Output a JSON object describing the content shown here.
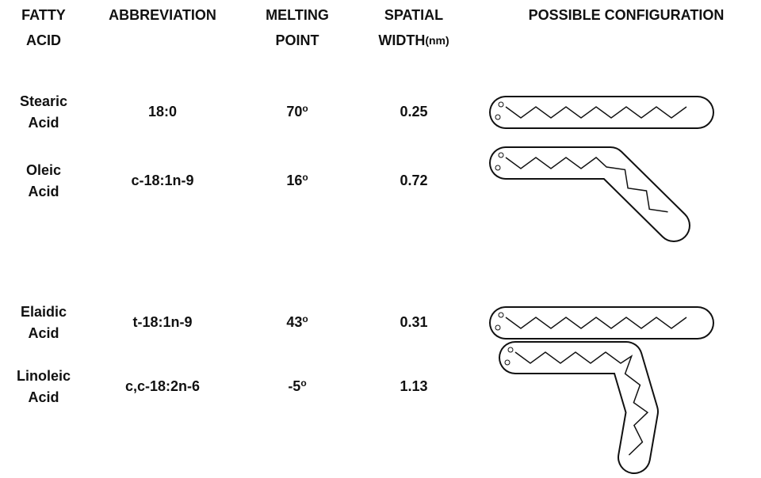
{
  "table": {
    "header": [
      [
        "FATTY",
        "ACID"
      ],
      [
        "ABBREVIATION"
      ],
      [
        "MELTING",
        "POINT"
      ],
      [
        "SPATIAL",
        "WIDTH",
        "(nm)"
      ],
      [
        "POSSIBLE CONFIGURATION"
      ]
    ],
    "rows": [
      {
        "name": [
          "Stearic",
          "Acid"
        ],
        "abbreviation": "18:0",
        "melting_point": "70",
        "degree": "o",
        "spatial_width": "0.25"
      },
      {
        "name": [
          "Oleic",
          "Acid"
        ],
        "abbreviation": "c-18:1n-9",
        "melting_point": "16",
        "degree": "o",
        "spatial_width": "0.72"
      },
      {
        "name": [
          "Elaidic",
          "Acid"
        ],
        "abbreviation": "t-18:1n-9",
        "melting_point": "43",
        "degree": "o",
        "spatial_width": "0.31"
      },
      {
        "name": [
          "Linoleic",
          "Acid"
        ],
        "abbreviation": "c,c-18:2n-6",
        "melting_point": "-5",
        "degree": "o",
        "spatial_width": "1.13"
      }
    ]
  }
}
